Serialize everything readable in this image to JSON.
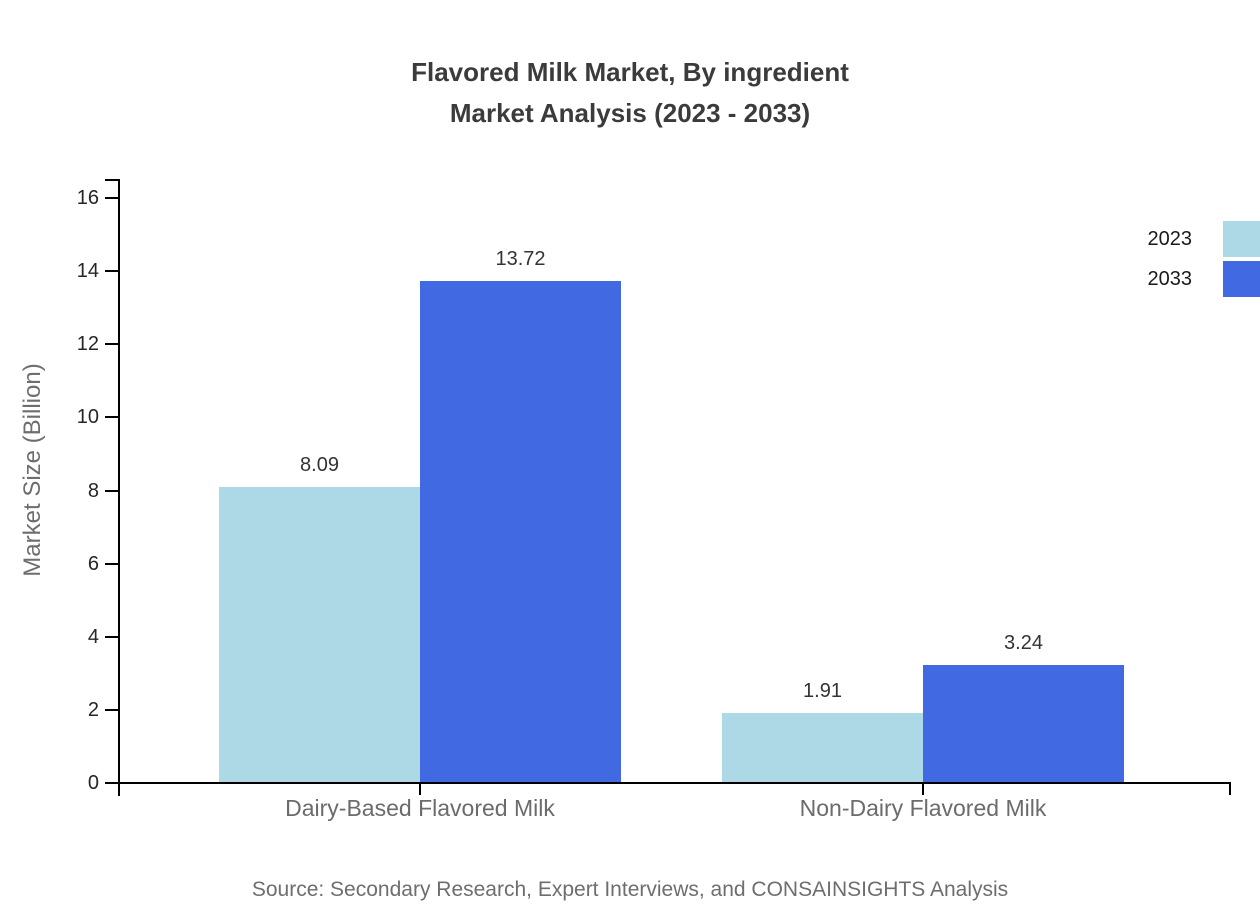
{
  "title": {
    "line1": "Flavored Milk Market, By ingredient",
    "line2": "Market Analysis (2023 - 2033)"
  },
  "source": "Source: Secondary Research, Expert Interviews, and CONSAINSIGHTS Analysis",
  "chart_data": {
    "type": "bar",
    "title": "Flavored Milk Market, By ingredient Market Analysis (2023 - 2033)",
    "categories": [
      "Dairy-Based Flavored Milk",
      "Non-Dairy Flavored Milk"
    ],
    "series": [
      {
        "name": "2023",
        "color": "#add8e6",
        "values": [
          8.09,
          1.91
        ]
      },
      {
        "name": "2033",
        "color": "#4169e1",
        "values": [
          13.72,
          3.24
        ]
      }
    ],
    "value_labels": [
      "8.09",
      "13.72",
      "1.91",
      "3.24"
    ],
    "xlabel": "",
    "ylabel": "Market Size (Billion)",
    "ylim": [
      0,
      16
    ],
    "yticks": [
      0,
      2,
      4,
      6,
      8,
      10,
      12,
      14,
      16
    ],
    "grid": false,
    "legend_position": "top-right",
    "legend_entries": [
      "2023",
      "2033"
    ]
  },
  "colors": {
    "series_2023": "#add8e6",
    "series_2033": "#4169e1",
    "title_text": "#3b3b3b",
    "axis": "#000000",
    "tick_label_text": "#262626",
    "muted_text": "#6e6e6e"
  }
}
